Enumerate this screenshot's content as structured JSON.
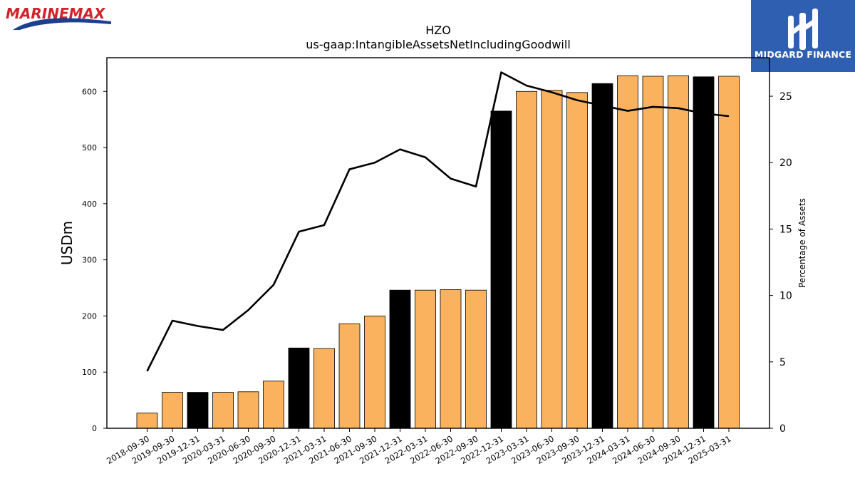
{
  "header": {
    "left_logo_text": "MARINEMAX",
    "right_logo_text": "MIDGARD FINANCE",
    "right_logo_icon": "midgard-monogram-icon"
  },
  "chart_data": {
    "type": "bar",
    "title": "HZO",
    "subtitle": "us-gaap:IntangibleAssetsNetIncludingGoodwill",
    "ylabel": "USDm",
    "y2label": "Percentage of Assets",
    "categories": [
      "2018-09-30",
      "2019-09-30",
      "2019-12-31",
      "2020-03-31",
      "2020-06-30",
      "2020-09-30",
      "2020-12-31",
      "2021-03-31",
      "2021-06-30",
      "2021-09-30",
      "2021-12-31",
      "2022-03-31",
      "2022-06-30",
      "2022-09-30",
      "2022-12-31",
      "2023-03-31",
      "2023-06-30",
      "2023-09-30",
      "2023-12-31",
      "2024-03-31",
      "2024-06-30",
      "2024-09-30",
      "2024-12-31",
      "2025-03-31"
    ],
    "ylim": [
      0,
      660
    ],
    "y2lim": [
      0,
      27.9
    ],
    "yticks": [
      0,
      100,
      200,
      300,
      400,
      500,
      600
    ],
    "y2ticks": [
      0,
      5,
      10,
      15,
      20,
      25
    ],
    "grid": false,
    "series": [
      {
        "kind": "bar",
        "values": [
          27,
          64,
          64,
          64,
          65,
          84,
          143,
          142,
          186,
          200,
          246,
          246,
          247,
          246,
          565,
          600,
          602,
          598,
          614,
          628,
          627,
          628,
          626,
          627
        ],
        "colors": [
          "#fbb25f",
          "#fbb25f",
          "#000000",
          "#fbb25f",
          "#fbb25f",
          "#fbb25f",
          "#000000",
          "#fbb25f",
          "#fbb25f",
          "#fbb25f",
          "#000000",
          "#fbb25f",
          "#fbb25f",
          "#fbb25f",
          "#000000",
          "#fbb25f",
          "#fbb25f",
          "#fbb25f",
          "#000000",
          "#fbb25f",
          "#fbb25f",
          "#fbb25f",
          "#000000",
          "#fbb25f"
        ]
      },
      {
        "kind": "line",
        "axis": "right",
        "color": "#000000",
        "values": [
          4.3,
          8.1,
          7.7,
          7.4,
          8.9,
          10.8,
          14.8,
          15.3,
          19.5,
          20.0,
          21.0,
          20.4,
          18.8,
          18.2,
          26.8,
          25.8,
          25.3,
          24.7,
          24.3,
          23.9,
          24.2,
          24.1,
          23.7,
          23.5
        ]
      }
    ]
  }
}
